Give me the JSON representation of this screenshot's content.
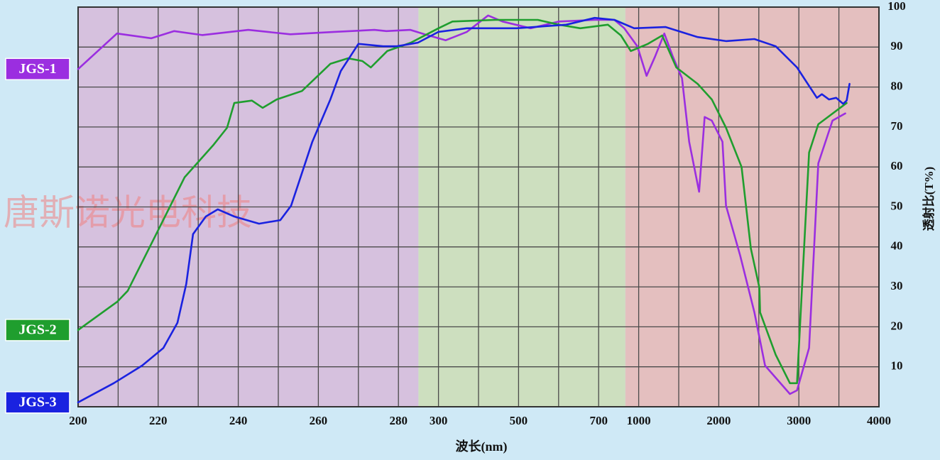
{
  "chart_data": {
    "type": "line",
    "watermark": "唐斯诺光电科技",
    "x_label": "波长(nm)",
    "y_label": "透射比(T%)",
    "xlim": [
      200,
      4000
    ],
    "xticks": [
      200,
      220,
      240,
      260,
      280,
      300,
      500,
      700,
      1000,
      2000,
      3000,
      4000
    ],
    "xminorticks": [
      210,
      230,
      250,
      270,
      400,
      600,
      1500,
      2500,
      3500
    ],
    "ylim": [
      0,
      100
    ],
    "yticks": [
      10,
      20,
      30,
      40,
      50,
      60,
      70,
      80,
      90,
      100
    ],
    "grid": true,
    "regions": [
      {
        "from": 200,
        "to": 290,
        "color": "#d6c1de"
      },
      {
        "from": 290,
        "to": 900,
        "color": "#cddfbf"
      },
      {
        "from": 900,
        "to": 4000,
        "color": "#e4bfbf"
      }
    ],
    "series": [
      {
        "name": "JGS-1",
        "color": "#9b2ee0",
        "x": [
          200,
          209.7,
          218.3,
          224,
          231,
          242.5,
          253,
          264,
          274,
          277,
          286,
          293,
          318,
          371,
          424,
          460,
          530,
          601,
          690,
          818,
          892,
          990,
          1098,
          1204,
          1320,
          1426,
          1541,
          1630,
          1754,
          1824,
          1913,
          2046,
          2090,
          2268,
          2445,
          2578,
          2888,
          2977,
          3128,
          3243,
          3420,
          3580
        ],
        "values": [
          84.5,
          93.4,
          92.2,
          94,
          93,
          94.3,
          93.2,
          93.8,
          94.3,
          94,
          94.3,
          93.2,
          91.7,
          93.8,
          97.9,
          96.4,
          94.7,
          96.4,
          96.8,
          96.8,
          94.7,
          90.2,
          82.8,
          87.6,
          93.4,
          87.6,
          82.2,
          66.3,
          53.8,
          72.5,
          71.6,
          66.3,
          50.3,
          37.8,
          23.6,
          10.3,
          3.2,
          4.1,
          14.7,
          60.9,
          71.6,
          73.4
        ]
      },
      {
        "name": "JGS-2",
        "color": "#1f9e2e",
        "x": [
          200,
          209.8,
          212.4,
          219.5,
          226.6,
          233.7,
          237.2,
          239,
          243.4,
          246.1,
          249.6,
          255.9,
          263,
          267.4,
          271,
          273.1,
          277.2,
          286.2,
          300,
          335,
          442,
          548,
          601,
          654,
          769,
          867,
          941,
          1115,
          1293,
          1470,
          1736,
          1913,
          2090,
          2285,
          2401,
          2507,
          2516,
          2711,
          2888,
          2977,
          3128,
          3243,
          3597
        ],
        "values": [
          19.2,
          26.3,
          29,
          43.2,
          57.4,
          65.4,
          69.8,
          76,
          76.6,
          74.8,
          76.9,
          79,
          85.8,
          87.2,
          86.5,
          84.9,
          89,
          91.1,
          94.7,
          96.4,
          96.8,
          96.8,
          95.6,
          94.7,
          95.6,
          92.9,
          89,
          90.8,
          92.9,
          84.9,
          80.8,
          76.9,
          69.8,
          60,
          39.6,
          29.8,
          23.6,
          13,
          5.9,
          5.9,
          63.6,
          70.7,
          76
        ]
      },
      {
        "name": "JGS-3",
        "color": "#1a22e0",
        "x": [
          200,
          208.9,
          216,
          221.3,
          224.8,
          227,
          228.7,
          231.9,
          234.9,
          239,
          245.2,
          250.5,
          253.2,
          258.5,
          263,
          265.6,
          270,
          276.2,
          279.6,
          289.7,
          300,
          371,
          495,
          619,
          690,
          818,
          966,
          1337,
          1736,
          2090,
          2445,
          2711,
          2977,
          3225,
          3287,
          3376,
          3465,
          3553,
          3597,
          3633
        ],
        "values": [
          1.1,
          5.9,
          10.3,
          14.7,
          21,
          30.7,
          43.2,
          47.6,
          49.4,
          47.6,
          45.8,
          46.7,
          50.3,
          66.3,
          76.9,
          84,
          90.8,
          90.2,
          90.2,
          91.1,
          93.8,
          94.7,
          94.7,
          95.6,
          97.3,
          96.8,
          94.7,
          95,
          92.5,
          91.5,
          92,
          90.2,
          84.9,
          77.3,
          78.2,
          76.9,
          77.3,
          75.8,
          76.6,
          80.8
        ]
      }
    ]
  }
}
